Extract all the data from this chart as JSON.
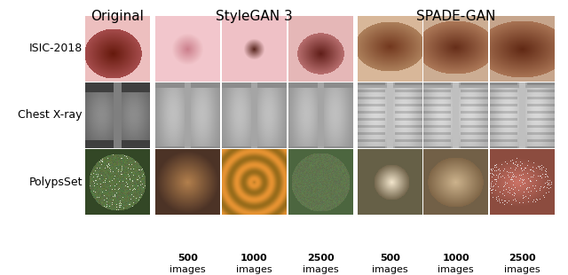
{
  "title_original": "Original",
  "title_stylegan": "StyleGAN 3",
  "title_spade": "SPADE-GAN",
  "row_labels": [
    "ISIC-2018",
    "Chest X-ray",
    "PolypsSet"
  ],
  "background": "#ffffff",
  "font_size_title": 11,
  "font_size_row": 9,
  "font_size_col": 8,
  "fig_width": 6.4,
  "fig_height": 3.1,
  "dpi": 100
}
